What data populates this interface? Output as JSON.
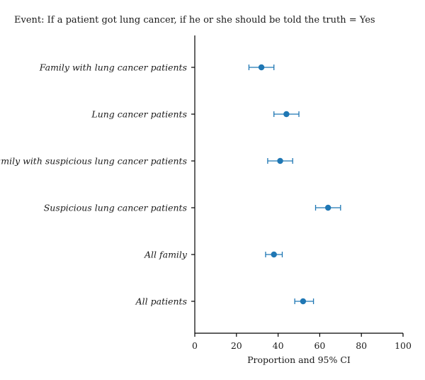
{
  "chart_data": {
    "type": "forest",
    "title": "Event: If a patient got lung cancer, if he or she should be told the truth = Yes",
    "xlabel": "Proportion and 95% CI",
    "xlim": [
      0,
      100
    ],
    "xticks": [
      0,
      20,
      40,
      60,
      80,
      100
    ],
    "categories": [
      "Family with lung cancer patients",
      "Lung cancer patients",
      "Family with suspicious lung cancer patients",
      "Suspicious lung cancer patients",
      "All family",
      "All patients"
    ],
    "estimates": [
      32,
      44,
      41,
      64,
      38,
      52
    ],
    "ci_low": [
      26,
      38,
      35,
      58,
      34,
      48
    ],
    "ci_high": [
      38,
      50,
      47,
      70,
      42,
      57
    ],
    "marker_color": "#1f77b4",
    "grid": false
  }
}
